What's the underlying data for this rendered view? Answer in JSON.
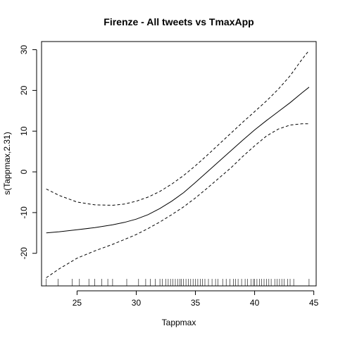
{
  "chart_data": {
    "type": "line",
    "title": "Firenze - All tweets vs TmaxApp",
    "xlabel": "Tappmax",
    "ylabel": "s(Tappmax,2.31)",
    "xlim": [
      22.0,
      45.2
    ],
    "ylim": [
      -28.0,
      32.0
    ],
    "x_ticks": [
      25,
      30,
      35,
      40,
      45
    ],
    "y_ticks": [
      -20,
      -10,
      0,
      10,
      20,
      30
    ],
    "grid": false,
    "legend": "none",
    "series": [
      {
        "role": "fit",
        "style": "solid",
        "x": [
          22.4,
          23.5,
          25,
          26.5,
          28,
          29,
          30,
          31,
          32,
          33,
          34,
          35,
          36,
          37,
          38,
          39,
          40,
          41,
          42,
          43,
          44,
          44.6
        ],
        "y": [
          -15.0,
          -14.7,
          -14.2,
          -13.7,
          -13.0,
          -12.4,
          -11.6,
          -10.5,
          -9.0,
          -7.2,
          -5.1,
          -2.6,
          0.0,
          2.6,
          5.2,
          7.8,
          10.3,
          12.6,
          14.8,
          17.0,
          19.4,
          20.8
        ]
      },
      {
        "role": "upper",
        "style": "dashed",
        "x": [
          22.4,
          23.5,
          25,
          26.5,
          28,
          29,
          30,
          31,
          32,
          33,
          34,
          35,
          36,
          37,
          38,
          39,
          40,
          41,
          42,
          43,
          44,
          44.6
        ],
        "y": [
          -4.2,
          -5.8,
          -7.4,
          -8.1,
          -8.2,
          -7.9,
          -7.2,
          -6.2,
          -4.8,
          -3.0,
          -0.9,
          1.5,
          4.1,
          6.8,
          9.5,
          12.2,
          14.8,
          17.4,
          20.3,
          23.6,
          27.6,
          29.8
        ]
      },
      {
        "role": "lower",
        "style": "dashed",
        "x": [
          22.4,
          23.5,
          25,
          26.5,
          28,
          29,
          30,
          31,
          32,
          33,
          34,
          35,
          36,
          37,
          38,
          39,
          40,
          41,
          42,
          43,
          44,
          44.6
        ],
        "y": [
          -26.0,
          -23.8,
          -21.2,
          -19.4,
          -17.8,
          -16.6,
          -15.4,
          -13.9,
          -12.3,
          -10.5,
          -8.6,
          -6.4,
          -4.0,
          -1.5,
          1.0,
          3.8,
          6.4,
          8.8,
          10.5,
          11.5,
          11.8,
          11.8
        ]
      }
    ],
    "rug_x": [
      22.4,
      23.4,
      24.6,
      25.2,
      26.0,
      26.5,
      27.1,
      27.6,
      28.0,
      29.2,
      30.2,
      30.8,
      31.2,
      31.6,
      32.0,
      32.2,
      32.5,
      32.7,
      32.9,
      33.1,
      33.3,
      33.5,
      33.7,
      33.8,
      34.0,
      34.2,
      34.4,
      34.6,
      34.8,
      35.0,
      35.2,
      35.4,
      35.6,
      35.8,
      36.1,
      36.4,
      36.7,
      36.9,
      37.3,
      37.6,
      37.9,
      38.2,
      38.4,
      38.6,
      38.9,
      39.2,
      39.4,
      39.7,
      39.9,
      40.0,
      40.2,
      40.4,
      40.6,
      40.8,
      41.0,
      41.2,
      41.4,
      41.7,
      41.9,
      42.1,
      42.3,
      42.5,
      42.8,
      43.0,
      43.3,
      44.6
    ]
  }
}
